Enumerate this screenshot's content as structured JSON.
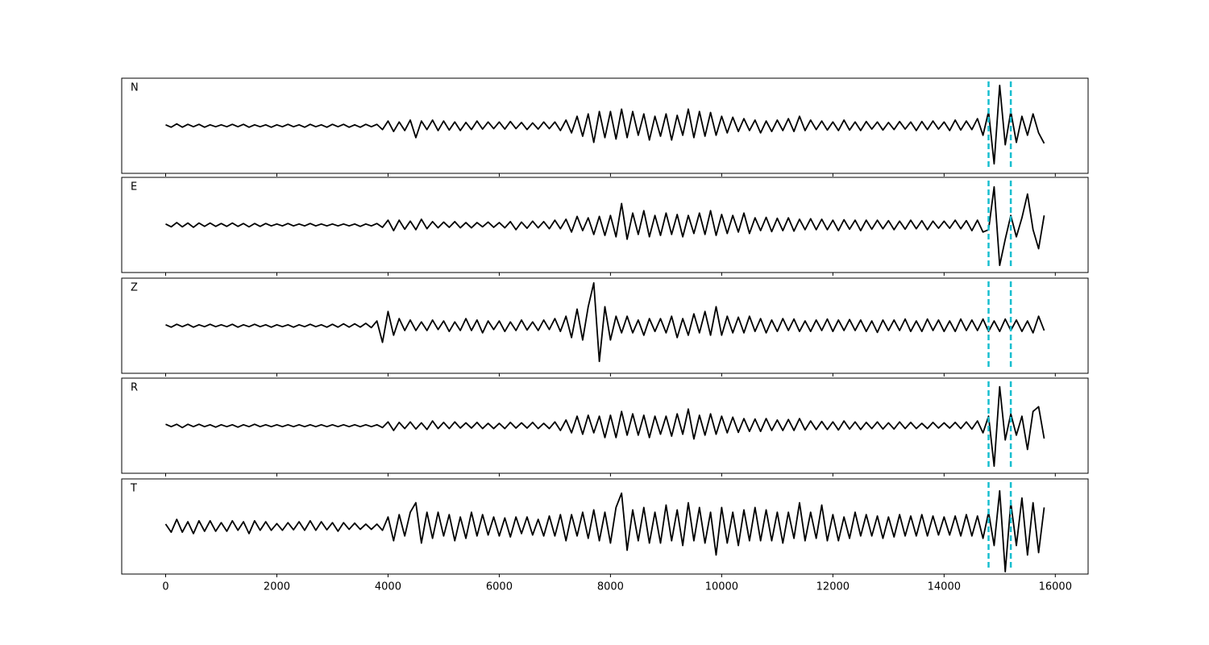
{
  "chart_data": {
    "type": "line",
    "xlim": [
      -790,
      16590
    ],
    "xticks": [
      0,
      2000,
      4000,
      6000,
      8000,
      10000,
      12000,
      14000,
      16000
    ],
    "ylim": [
      -1,
      1
    ],
    "vlines": {
      "values": [
        14800,
        15200
      ],
      "color": "#17becf"
    },
    "x": [
      0,
      100,
      200,
      300,
      400,
      500,
      600,
      700,
      800,
      900,
      1000,
      1100,
      1200,
      1300,
      1400,
      1500,
      1600,
      1700,
      1800,
      1900,
      2000,
      2100,
      2200,
      2300,
      2400,
      2500,
      2600,
      2700,
      2800,
      2900,
      3000,
      3100,
      3200,
      3300,
      3400,
      3500,
      3600,
      3700,
      3800,
      3900,
      4000,
      4100,
      4200,
      4300,
      4400,
      4500,
      4600,
      4700,
      4800,
      4900,
      5000,
      5100,
      5200,
      5300,
      5400,
      5500,
      5600,
      5700,
      5800,
      5900,
      6000,
      6100,
      6200,
      6300,
      6400,
      6500,
      6600,
      6700,
      6800,
      6900,
      7000,
      7100,
      7200,
      7300,
      7400,
      7500,
      7600,
      7700,
      7800,
      7900,
      8000,
      8100,
      8200,
      8300,
      8400,
      8500,
      8600,
      8700,
      8800,
      8900,
      9000,
      9100,
      9200,
      9300,
      9400,
      9500,
      9600,
      9700,
      9800,
      9900,
      10000,
      10100,
      10200,
      10300,
      10400,
      10500,
      10600,
      10700,
      10800,
      10900,
      11000,
      11100,
      11200,
      11300,
      11400,
      11500,
      11600,
      11700,
      11800,
      11900,
      12000,
      12100,
      12200,
      12300,
      12400,
      12500,
      12600,
      12700,
      12800,
      12900,
      13000,
      13100,
      13200,
      13300,
      13400,
      13500,
      13600,
      13700,
      13800,
      13900,
      14000,
      14100,
      14200,
      14300,
      14400,
      14500,
      14600,
      14700,
      14800,
      14900,
      15000,
      15100,
      15200,
      15300,
      15400,
      15500,
      15600,
      15700,
      15800
    ],
    "series": [
      {
        "name": "N",
        "color": "#000000",
        "values": [
          0.02,
          -0.03,
          0.04,
          -0.03,
          0.03,
          -0.02,
          0.03,
          -0.03,
          0.02,
          -0.02,
          0.02,
          -0.02,
          0.03,
          -0.02,
          0.03,
          -0.03,
          0.02,
          -0.02,
          0.02,
          -0.03,
          0.02,
          -0.02,
          0.03,
          -0.02,
          0.02,
          -0.03,
          0.03,
          -0.02,
          0.02,
          -0.03,
          0.03,
          -0.02,
          0.03,
          -0.03,
          0.02,
          -0.03,
          0.03,
          -0.02,
          0.03,
          -0.08,
          0.1,
          -0.12,
          0.08,
          -0.1,
          0.12,
          -0.25,
          0.1,
          -0.08,
          0.12,
          -0.1,
          0.1,
          -0.09,
          0.08,
          -0.1,
          0.07,
          -0.08,
          0.1,
          -0.07,
          0.08,
          -0.06,
          0.08,
          -0.07,
          0.09,
          -0.06,
          0.07,
          -0.08,
          0.06,
          -0.07,
          0.08,
          -0.06,
          0.08,
          -0.1,
          0.12,
          -0.15,
          0.2,
          -0.22,
          0.25,
          -0.35,
          0.3,
          -0.25,
          0.3,
          -0.28,
          0.35,
          -0.25,
          0.3,
          -0.2,
          0.25,
          -0.3,
          0.2,
          -0.22,
          0.25,
          -0.3,
          0.22,
          -0.2,
          0.35,
          -0.25,
          0.3,
          -0.22,
          0.28,
          -0.2,
          0.2,
          -0.15,
          0.18,
          -0.12,
          0.15,
          -0.1,
          0.12,
          -0.15,
          0.1,
          -0.12,
          0.12,
          -0.1,
          0.15,
          -0.12,
          0.2,
          -0.1,
          0.12,
          -0.08,
          0.1,
          -0.09,
          0.08,
          -0.1,
          0.12,
          -0.09,
          0.08,
          -0.1,
          0.09,
          -0.07,
          0.08,
          -0.09,
          0.07,
          -0.08,
          0.09,
          -0.07,
          0.08,
          -0.1,
          0.09,
          -0.08,
          0.1,
          -0.07,
          0.08,
          -0.1,
          0.12,
          -0.09,
          0.1,
          -0.08,
          0.15,
          -0.2,
          0.3,
          -0.8,
          0.85,
          -0.4,
          0.3,
          -0.35,
          0.2,
          -0.2,
          0.25,
          -0.15,
          -0.37
        ]
      },
      {
        "name": "E",
        "color": "#000000",
        "values": [
          0.02,
          -0.04,
          0.05,
          -0.04,
          0.04,
          -0.05,
          0.04,
          -0.03,
          0.04,
          -0.03,
          0.03,
          -0.03,
          0.04,
          -0.03,
          0.03,
          -0.04,
          0.03,
          -0.03,
          0.03,
          -0.02,
          0.02,
          -0.02,
          0.03,
          -0.02,
          0.02,
          -0.02,
          0.03,
          -0.02,
          0.02,
          -0.02,
          0.02,
          -0.02,
          0.02,
          -0.02,
          0.02,
          -0.03,
          0.02,
          -0.02,
          0.03,
          -0.05,
          0.1,
          -0.12,
          0.1,
          -0.09,
          0.08,
          -0.1,
          0.12,
          -0.08,
          0.07,
          -0.06,
          0.06,
          -0.05,
          0.07,
          -0.06,
          0.05,
          -0.06,
          0.05,
          -0.04,
          0.06,
          -0.05,
          0.05,
          -0.06,
          0.07,
          -0.1,
          0.06,
          -0.07,
          0.08,
          -0.06,
          0.07,
          -0.08,
          0.1,
          -0.08,
          0.12,
          -0.15,
          0.18,
          -0.12,
          0.15,
          -0.2,
          0.18,
          -0.22,
          0.2,
          -0.25,
          0.45,
          -0.3,
          0.25,
          -0.2,
          0.3,
          -0.25,
          0.2,
          -0.22,
          0.25,
          -0.2,
          0.22,
          -0.25,
          0.2,
          -0.18,
          0.25,
          -0.2,
          0.3,
          -0.22,
          0.22,
          -0.18,
          0.2,
          -0.15,
          0.25,
          -0.18,
          0.15,
          -0.12,
          0.16,
          -0.14,
          0.14,
          -0.12,
          0.15,
          -0.13,
          0.12,
          -0.1,
          0.13,
          -0.1,
          0.12,
          -0.1,
          0.1,
          -0.12,
          0.11,
          -0.09,
          0.1,
          -0.12,
          0.1,
          -0.09,
          0.1,
          -0.08,
          0.09,
          -0.1,
          0.08,
          -0.09,
          0.1,
          -0.08,
          0.09,
          -0.1,
          0.08,
          -0.07,
          0.08,
          -0.07,
          0.1,
          -0.08,
          0.09,
          -0.12,
          0.1,
          -0.15,
          -0.1,
          0.8,
          -0.85,
          -0.3,
          0.2,
          -0.25,
          0.15,
          0.65,
          -0.1,
          -0.5,
          0.2
        ]
      },
      {
        "name": "Z",
        "color": "#000000",
        "values": [
          0.02,
          -0.03,
          0.03,
          -0.02,
          0.03,
          -0.03,
          0.02,
          -0.02,
          0.03,
          -0.02,
          0.02,
          -0.02,
          0.03,
          -0.03,
          0.02,
          -0.02,
          0.03,
          -0.02,
          0.02,
          -0.03,
          0.02,
          -0.02,
          0.02,
          -0.03,
          0.02,
          -0.02,
          0.03,
          -0.02,
          0.02,
          -0.03,
          0.03,
          -0.03,
          0.04,
          -0.03,
          0.04,
          -0.03,
          0.05,
          -0.04,
          0.1,
          -0.35,
          0.3,
          -0.2,
          0.15,
          -0.1,
          0.12,
          -0.1,
          0.08,
          -0.1,
          0.12,
          -0.08,
          0.1,
          -0.12,
          0.08,
          -0.1,
          0.15,
          -0.1,
          0.12,
          -0.15,
          0.1,
          -0.08,
          0.1,
          -0.12,
          0.08,
          -0.1,
          0.12,
          -0.09,
          0.08,
          -0.1,
          0.12,
          -0.08,
          0.15,
          -0.12,
          0.2,
          -0.25,
          0.35,
          -0.3,
          0.4,
          0.9,
          -0.75,
          0.4,
          -0.3,
          0.2,
          -0.15,
          0.2,
          -0.15,
          0.12,
          -0.2,
          0.15,
          -0.12,
          0.15,
          -0.15,
          0.2,
          -0.25,
          0.15,
          -0.2,
          0.25,
          -0.15,
          0.3,
          -0.2,
          0.4,
          -0.2,
          0.2,
          -0.15,
          0.18,
          -0.15,
          0.2,
          -0.12,
          0.15,
          -0.15,
          0.12,
          -0.12,
          0.15,
          -0.1,
          0.14,
          -0.12,
          0.1,
          -0.12,
          0.12,
          -0.1,
          0.14,
          -0.12,
          0.12,
          -0.1,
          0.13,
          -0.1,
          0.12,
          -0.12,
          0.1,
          -0.14,
          0.12,
          -0.1,
          0.12,
          -0.1,
          0.14,
          -0.12,
          0.1,
          -0.12,
          0.14,
          -0.1,
          0.12,
          -0.12,
          0.1,
          -0.12,
          0.14,
          -0.1,
          0.12,
          -0.1,
          0.14,
          -0.12,
          0.1,
          -0.12,
          0.14,
          -0.1,
          0.12,
          -0.12,
          0.1,
          -0.15,
          0.2,
          -0.1
        ]
      },
      {
        "name": "R",
        "color": "#000000",
        "values": [
          0.03,
          -0.02,
          0.03,
          -0.04,
          0.03,
          -0.02,
          0.03,
          -0.02,
          0.02,
          -0.03,
          0.02,
          -0.02,
          0.02,
          -0.03,
          0.02,
          -0.02,
          0.03,
          -0.02,
          0.02,
          -0.02,
          0.02,
          -0.02,
          0.02,
          -0.02,
          0.02,
          -0.02,
          0.02,
          -0.02,
          0.02,
          -0.02,
          0.02,
          -0.02,
          0.02,
          -0.02,
          0.02,
          -0.02,
          0.02,
          -0.02,
          0.02,
          -0.04,
          0.08,
          -0.1,
          0.07,
          -0.06,
          0.08,
          -0.07,
          0.06,
          -0.08,
          0.1,
          -0.06,
          0.07,
          -0.06,
          0.08,
          -0.05,
          0.06,
          -0.05,
          0.07,
          -0.06,
          0.05,
          -0.06,
          0.05,
          -0.06,
          0.07,
          -0.05,
          0.06,
          -0.05,
          0.07,
          -0.06,
          0.05,
          -0.06,
          0.08,
          -0.1,
          0.12,
          -0.15,
          0.2,
          -0.18,
          0.22,
          -0.15,
          0.2,
          -0.25,
          0.22,
          -0.25,
          0.3,
          -0.2,
          0.25,
          -0.2,
          0.22,
          -0.25,
          0.2,
          -0.18,
          0.2,
          -0.22,
          0.25,
          -0.18,
          0.35,
          -0.28,
          0.22,
          -0.2,
          0.25,
          -0.18,
          0.2,
          -0.15,
          0.18,
          -0.14,
          0.15,
          -0.12,
          0.14,
          -0.12,
          0.15,
          -0.1,
          0.12,
          -0.1,
          0.13,
          -0.1,
          0.15,
          -0.09,
          0.1,
          -0.08,
          0.09,
          -0.08,
          0.08,
          -0.09,
          0.1,
          -0.07,
          0.08,
          -0.08,
          0.07,
          -0.06,
          0.08,
          -0.07,
          0.06,
          -0.07,
          0.08,
          -0.06,
          0.07,
          -0.06,
          0.05,
          -0.06,
          0.07,
          -0.05,
          0.06,
          -0.05,
          0.07,
          -0.06,
          0.08,
          -0.07,
          0.1,
          -0.15,
          0.2,
          -0.85,
          0.82,
          -0.3,
          0.25,
          -0.2,
          0.2,
          -0.5,
          0.3,
          0.4,
          -0.27
        ]
      },
      {
        "name": "T",
        "color": "#000000",
        "values": [
          0.05,
          -0.12,
          0.15,
          -0.12,
          0.1,
          -0.15,
          0.12,
          -0.1,
          0.12,
          -0.1,
          0.08,
          -0.1,
          0.12,
          -0.08,
          0.1,
          -0.15,
          0.12,
          -0.08,
          0.1,
          -0.08,
          0.06,
          -0.08,
          0.08,
          -0.07,
          0.1,
          -0.08,
          0.12,
          -0.08,
          0.1,
          -0.07,
          0.08,
          -0.1,
          0.08,
          -0.06,
          0.07,
          -0.06,
          0.05,
          -0.06,
          0.05,
          -0.08,
          0.2,
          -0.3,
          0.25,
          -0.2,
          0.3,
          0.5,
          -0.35,
          0.3,
          -0.25,
          0.3,
          -0.2,
          0.25,
          -0.3,
          0.2,
          -0.25,
          0.3,
          -0.2,
          0.25,
          -0.18,
          0.2,
          -0.2,
          0.18,
          -0.22,
          0.2,
          -0.15,
          0.2,
          -0.18,
          0.15,
          -0.2,
          0.22,
          -0.2,
          0.25,
          -0.3,
          0.25,
          -0.2,
          0.3,
          -0.25,
          0.35,
          -0.3,
          0.3,
          -0.35,
          0.4,
          0.7,
          -0.5,
          0.35,
          -0.3,
          0.4,
          -0.35,
          0.3,
          -0.35,
          0.45,
          -0.3,
          0.35,
          -0.4,
          0.5,
          -0.3,
          0.4,
          -0.35,
          0.3,
          -0.6,
          0.4,
          -0.35,
          0.3,
          -0.4,
          0.35,
          -0.3,
          0.4,
          -0.3,
          0.35,
          -0.3,
          0.3,
          -0.35,
          0.3,
          -0.25,
          0.5,
          -0.3,
          0.3,
          -0.25,
          0.45,
          -0.3,
          0.25,
          -0.3,
          0.2,
          -0.25,
          0.3,
          -0.2,
          0.25,
          -0.2,
          0.22,
          -0.25,
          0.2,
          -0.22,
          0.25,
          -0.2,
          0.22,
          -0.2,
          0.25,
          -0.2,
          0.22,
          -0.18,
          0.2,
          -0.18,
          0.22,
          -0.2,
          0.25,
          -0.2,
          0.22,
          -0.25,
          0.3,
          -0.4,
          0.75,
          -0.95,
          0.5,
          -0.4,
          0.6,
          -0.6,
          0.5,
          -0.55,
          0.4
        ]
      }
    ]
  }
}
